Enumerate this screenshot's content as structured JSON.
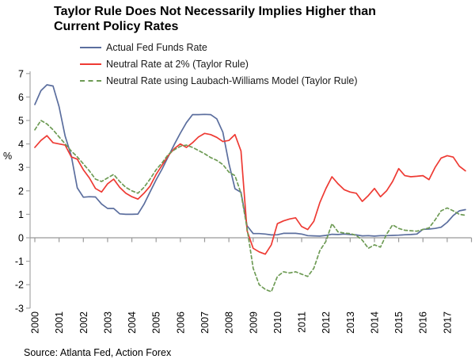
{
  "title": {
    "line1": "Taylor Rule Does Not Necessarily Implies Higher than",
    "line2": "Current Policy Rates"
  },
  "ylabel": "%",
  "source": "Source: Atlanta Fed, Action Forex",
  "colors": {
    "actual_ffr": "#5b6e9e",
    "taylor_2pct": "#ee3a33",
    "laubach_williams": "#6e9b55",
    "axis": "#a6a6a6",
    "text": "#000000"
  },
  "chart_data": {
    "type": "line",
    "title": "Taylor Rule Does Not Necessarily Implies Higher than Current Policy Rates",
    "x_unit": "year, quarterly points",
    "categories": [
      "2000",
      "2001",
      "2002",
      "2003",
      "2004",
      "2005",
      "2006",
      "2007",
      "2008",
      "2009",
      "2010",
      "2011",
      "2012",
      "2013",
      "2014",
      "2015",
      "2016",
      "2017"
    ],
    "points_per_year": 4,
    "ylim": [
      -3,
      7
    ],
    "yticks": [
      7,
      6,
      5,
      4,
      3,
      2,
      1,
      0,
      -1,
      -2,
      -3
    ],
    "grid": "zero-line-only",
    "legend_position": "top-left",
    "series": [
      {
        "name": "Actual Fed Funds Rate",
        "color": "#5b6e9e",
        "style": "solid",
        "values": [
          5.68,
          6.27,
          6.52,
          6.47,
          5.59,
          4.33,
          3.5,
          2.13,
          1.73,
          1.75,
          1.74,
          1.44,
          1.25,
          1.25,
          1.02,
          1.0,
          1.0,
          1.01,
          1.43,
          1.95,
          2.47,
          2.94,
          3.46,
          3.98,
          4.46,
          4.91,
          5.25,
          5.25,
          5.26,
          5.25,
          5.07,
          4.5,
          3.18,
          2.09,
          1.94,
          0.51,
          0.18,
          0.18,
          0.16,
          0.12,
          0.13,
          0.19,
          0.19,
          0.19,
          0.16,
          0.09,
          0.08,
          0.07,
          0.1,
          0.15,
          0.14,
          0.16,
          0.14,
          0.12,
          0.08,
          0.09,
          0.07,
          0.09,
          0.09,
          0.1,
          0.11,
          0.13,
          0.14,
          0.16,
          0.36,
          0.37,
          0.4,
          0.45,
          0.66,
          0.95,
          1.15,
          1.2
        ]
      },
      {
        "name": "Neutral Rate at 2% (Taylor Rule)",
        "color": "#ee3a33",
        "style": "solid",
        "values": [
          3.85,
          4.15,
          4.35,
          4.05,
          4.0,
          3.95,
          3.45,
          3.35,
          2.9,
          2.55,
          2.1,
          1.95,
          2.3,
          2.5,
          2.15,
          1.9,
          1.75,
          1.65,
          1.9,
          2.2,
          2.7,
          3.1,
          3.5,
          3.8,
          4.0,
          3.85,
          4.05,
          4.3,
          4.45,
          4.4,
          4.28,
          4.1,
          4.15,
          4.4,
          3.7,
          0.3,
          -0.45,
          -0.6,
          -0.7,
          -0.3,
          0.6,
          0.72,
          0.8,
          0.85,
          0.48,
          0.35,
          0.7,
          1.5,
          2.1,
          2.6,
          2.3,
          2.05,
          1.95,
          1.9,
          1.55,
          1.8,
          2.1,
          1.75,
          2.0,
          2.4,
          2.95,
          2.65,
          2.6,
          2.62,
          2.65,
          2.48,
          3.0,
          3.4,
          3.5,
          3.44,
          3.05,
          2.85
        ]
      },
      {
        "name": "Neutral Rate using Laubach-Williams Model (Taylor Rule)",
        "color": "#6e9b55",
        "style": "dashed",
        "values": [
          4.6,
          5.0,
          4.85,
          4.6,
          4.3,
          4.0,
          3.7,
          3.45,
          3.15,
          2.85,
          2.5,
          2.4,
          2.55,
          2.7,
          2.4,
          2.15,
          2.0,
          1.9,
          2.15,
          2.5,
          2.9,
          3.2,
          3.55,
          3.75,
          3.9,
          3.95,
          3.85,
          3.72,
          3.58,
          3.42,
          3.3,
          3.12,
          2.8,
          2.65,
          1.9,
          0.4,
          -1.3,
          -2.0,
          -2.2,
          -2.3,
          -1.65,
          -1.45,
          -1.5,
          -1.45,
          -1.55,
          -1.65,
          -1.3,
          -0.55,
          -0.15,
          0.6,
          0.25,
          0.2,
          0.18,
          0.1,
          -0.1,
          -0.45,
          -0.3,
          -0.4,
          0.15,
          0.55,
          0.4,
          0.32,
          0.3,
          0.28,
          0.35,
          0.42,
          0.76,
          1.15,
          1.27,
          1.15,
          1.0,
          0.96
        ]
      }
    ]
  }
}
